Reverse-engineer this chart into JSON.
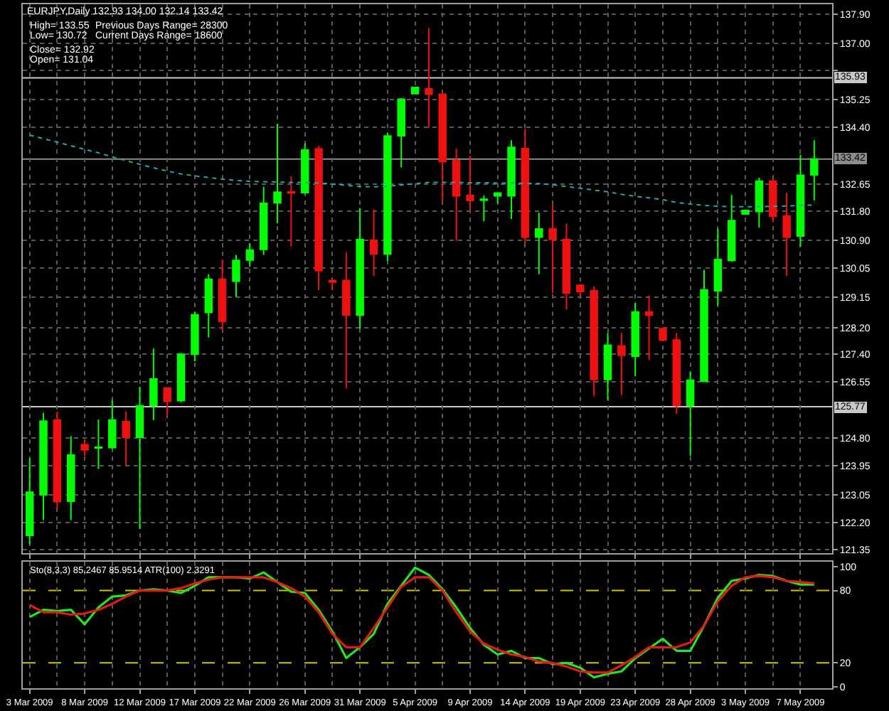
{
  "chart_data": [
    {
      "type": "candlestick",
      "title": "EURJPY,Daily 132.93 134.00 132.14 133.42",
      "annotations": [
        "High= 133.55",
        "Previous Days Range= 28300",
        "Low= 130.72",
        "Current Days Range= 18600",
        "Close= 132.92",
        "Open= 131.04"
      ],
      "categories": [
        null,
        null,
        null,
        null,
        null,
        null,
        null,
        null,
        null,
        null,
        null,
        null,
        null,
        null,
        null,
        null,
        null,
        null,
        null,
        null,
        null,
        null,
        null,
        null,
        null,
        null,
        null,
        null,
        null,
        null,
        null,
        null,
        null,
        null,
        null,
        null,
        null,
        null,
        null,
        null,
        null,
        null,
        null,
        null,
        null,
        null,
        null,
        null,
        null,
        null,
        null,
        null,
        null,
        null,
        null,
        null,
        null,
        null
      ],
      "ohlc": [
        [
          121.8,
          124.18,
          121.52,
          123.13
        ],
        [
          123.05,
          125.58,
          122.27,
          125.33
        ],
        [
          125.36,
          125.62,
          122.62,
          122.84
        ],
        [
          122.85,
          124.86,
          122.27,
          124.28
        ],
        [
          124.6,
          124.73,
          124.25,
          124.44
        ],
        [
          124.5,
          125.38,
          123.85,
          124.52
        ],
        [
          124.51,
          125.98,
          124.47,
          125.36
        ],
        [
          125.31,
          125.62,
          123.96,
          124.83
        ],
        [
          124.83,
          126.39,
          122.0,
          125.8
        ],
        [
          125.81,
          127.57,
          125.36,
          126.63
        ],
        [
          126.35,
          126.37,
          125.48,
          125.94
        ],
        [
          125.96,
          127.43,
          125.91,
          127.39
        ],
        [
          127.39,
          128.7,
          127.17,
          128.61
        ],
        [
          128.68,
          129.86,
          127.91,
          129.71
        ],
        [
          129.71,
          130.32,
          128.12,
          128.41
        ],
        [
          129.65,
          130.46,
          129.16,
          130.29
        ],
        [
          130.3,
          130.82,
          130.1,
          130.61
        ],
        [
          130.63,
          132.56,
          130.46,
          132.05
        ],
        [
          132.07,
          134.51,
          131.43,
          132.4
        ],
        [
          132.41,
          132.89,
          130.72,
          132.37
        ],
        [
          132.38,
          133.9,
          132.34,
          133.7
        ],
        [
          133.73,
          133.83,
          129.38,
          129.97
        ],
        [
          129.67,
          129.7,
          129.38,
          129.62
        ],
        [
          129.67,
          130.53,
          126.33,
          128.6
        ],
        [
          128.6,
          131.91,
          128.18,
          130.94
        ],
        [
          130.91,
          131.86,
          129.81,
          130.49
        ],
        [
          130.49,
          134.22,
          130.27,
          134.13
        ],
        [
          134.14,
          135.3,
          133.16,
          135.27
        ],
        [
          135.44,
          135.66,
          135.42,
          135.63
        ],
        [
          135.59,
          137.47,
          134.39,
          135.42
        ],
        [
          135.42,
          135.44,
          132.12,
          133.34
        ],
        [
          133.37,
          133.74,
          130.89,
          132.28
        ],
        [
          132.3,
          133.52,
          131.83,
          132.14
        ],
        [
          132.15,
          132.3,
          131.5,
          132.18
        ],
        [
          132.28,
          132.38,
          132.05,
          132.37
        ],
        [
          132.28,
          134.0,
          131.57,
          133.78
        ],
        [
          133.74,
          134.36,
          130.82,
          131.01
        ],
        [
          131.01,
          131.76,
          129.86,
          131.26
        ],
        [
          131.26,
          132.01,
          129.28,
          130.94
        ],
        [
          130.94,
          131.43,
          128.77,
          129.28
        ],
        [
          129.52,
          129.55,
          129.16,
          129.33
        ],
        [
          129.35,
          129.49,
          126.1,
          126.61
        ],
        [
          126.61,
          128.05,
          125.98,
          127.67
        ],
        [
          127.65,
          128.05,
          126.13,
          127.36
        ],
        [
          127.33,
          128.99,
          126.71,
          128.7
        ],
        [
          128.7,
          129.21,
          127.21,
          128.6
        ],
        [
          128.18,
          128.19,
          127.82,
          127.83
        ],
        [
          127.83,
          128.05,
          125.55,
          125.81
        ],
        [
          125.81,
          126.85,
          124.25,
          126.59
        ],
        [
          126.56,
          130.0,
          126.53,
          129.38
        ],
        [
          129.35,
          131.26,
          128.9,
          130.32
        ],
        [
          130.29,
          132.31,
          130.25,
          131.52
        ],
        [
          131.72,
          131.83,
          131.72,
          131.83
        ],
        [
          131.8,
          132.84,
          131.3,
          132.74
        ],
        [
          132.73,
          132.82,
          131.47,
          131.65
        ],
        [
          131.66,
          132.38,
          129.81,
          131.01
        ],
        [
          131.04,
          133.55,
          130.72,
          132.92
        ],
        [
          132.93,
          134.0,
          132.14,
          133.42
        ]
      ],
      "colors": [
        "#00ff00",
        "#00ff00",
        "#ee1111",
        "#00ff00",
        "#ee1111",
        "#00ff00",
        "#00ff00",
        "#ee1111",
        "#00ff00",
        "#00ff00",
        "#ee1111",
        "#00ff00",
        "#00ff00",
        "#00ff00",
        "#ee1111",
        "#00ff00",
        "#00ff00",
        "#00ff00",
        "#00ff00",
        "#ee1111",
        "#00ff00",
        "#ee1111",
        "#ee1111",
        "#ee1111",
        "#00ff00",
        "#ee1111",
        "#00ff00",
        "#00ff00",
        "#00ff00",
        "#ee1111",
        "#ee1111",
        "#ee1111",
        "#ee1111",
        "#00ff00",
        "#00ff00",
        "#00ff00",
        "#ee1111",
        "#00ff00",
        "#ee1111",
        "#ee1111",
        "#ee1111",
        "#ee1111",
        "#00ff00",
        "#ee1111",
        "#00ff00",
        "#ee1111",
        "#ee1111",
        "#ee1111",
        "#00ff00",
        "#00ff00",
        "#00ff00",
        "#00ff00",
        "#00ff00",
        "#00ff00",
        "#ee1111",
        "#ee1111",
        "#00ff00",
        "#00ff00"
      ],
      "series": [
        {
          "type": "line",
          "color": "#20a8a8",
          "line_style": "dotted",
          "values": [
            134.16,
            134.05,
            133.94,
            133.83,
            133.72,
            133.61,
            133.49,
            133.37,
            133.26,
            133.15,
            133.05,
            132.96,
            132.9,
            132.85,
            132.8,
            132.76,
            132.73,
            132.72,
            132.71,
            132.7,
            132.7,
            132.68,
            132.65,
            132.61,
            132.57,
            132.56,
            132.58,
            132.62,
            132.66,
            132.7,
            132.7,
            132.7,
            132.69,
            132.69,
            132.68,
            132.68,
            132.67,
            132.66,
            132.63,
            132.57,
            132.52,
            132.46,
            132.41,
            132.33,
            132.27,
            132.22,
            132.17,
            132.08,
            132.03,
            131.99,
            131.96,
            131.95,
            131.95,
            131.95,
            131.96,
            131.97,
            131.99,
            132.0
          ]
        }
      ],
      "ylim": [
        121.25,
        138.2
      ],
      "yticks": [
        {
          "value": 137.9,
          "label": "137.90"
        },
        {
          "value": 137.0,
          "label": "137.00"
        },
        {
          "value": 136.15,
          "label": null
        },
        {
          "value": 135.25,
          "label": "135.25"
        },
        {
          "value": 134.4,
          "label": "134.40"
        },
        {
          "value": 132.65,
          "label": "132.65"
        },
        {
          "value": 131.8,
          "label": "131.80"
        },
        {
          "value": 130.9,
          "label": "130.90"
        },
        {
          "value": 130.05,
          "label": "130.05"
        },
        {
          "value": 129.15,
          "label": "129.15"
        },
        {
          "value": 128.2,
          "label": "128.20"
        },
        {
          "value": 127.4,
          "label": "127.40"
        },
        {
          "value": 126.55,
          "label": "126.55"
        },
        {
          "value": 124.8,
          "label": "124.80"
        },
        {
          "value": 123.95,
          "label": "123.95"
        },
        {
          "value": 123.05,
          "label": "123.05"
        },
        {
          "value": 122.2,
          "label": "122.20"
        },
        {
          "value": 121.35,
          "label": "121.35"
        }
      ],
      "ref_lines": [
        {
          "axis": "y",
          "value": 135.93,
          "label": "135.93",
          "color": "#c8c8c8"
        },
        {
          "axis": "y",
          "value": 133.42,
          "label": "133.42",
          "color": "#8c8c8c"
        },
        {
          "axis": "y",
          "value": 125.77,
          "label": "125.77",
          "color": "#c8c8c8"
        }
      ],
      "grid": true,
      "tick_labels": "y"
    },
    {
      "type": "line",
      "title": "Sto(8,3,3) 85.2467 85.9514 ATR(100) 2.3291",
      "categories": [
        "3 Mar 2009",
        null,
        null,
        null,
        "8 Mar 2009",
        null,
        null,
        null,
        "12 Mar 2009",
        null,
        null,
        null,
        "17 Mar 2009",
        null,
        null,
        null,
        "22 Mar 2009",
        null,
        null,
        null,
        "26 Mar 2009",
        null,
        null,
        null,
        "31 Mar 2009",
        null,
        null,
        null,
        "5 Apr 2009",
        null,
        null,
        null,
        "9 Apr 2009",
        null,
        null,
        null,
        "14 Apr 2009",
        null,
        null,
        null,
        "19 Apr 2009",
        null,
        null,
        null,
        "23 Apr 2009",
        null,
        null,
        null,
        "28 Apr 2009",
        null,
        null,
        null,
        "3 May 2009",
        null,
        null,
        null,
        "7 May 2009",
        null
      ],
      "series": [
        {
          "color": "#22e622",
          "values": [
            58,
            64,
            63,
            64,
            52,
            66,
            75,
            76,
            80,
            81,
            80,
            78,
            84,
            91,
            91,
            91,
            90,
            95,
            87,
            79,
            78,
            64,
            46,
            24,
            33,
            44,
            69,
            84,
            99,
            93,
            81,
            66,
            49,
            35,
            27,
            30,
            24,
            24,
            19,
            20,
            16,
            8,
            11,
            13,
            24,
            32,
            40,
            30,
            30,
            51,
            74,
            88,
            90,
            93,
            92,
            88,
            85,
            85
          ]
        },
        {
          "color": "#e61919",
          "values": [
            68,
            62,
            62,
            60,
            61,
            64,
            69,
            75,
            80,
            80,
            80,
            82,
            86,
            89,
            91,
            91,
            91,
            91,
            87,
            82,
            75,
            62,
            44,
            33,
            33,
            49,
            66,
            83,
            91,
            91,
            80,
            62,
            46,
            36,
            31,
            27,
            25,
            21,
            20,
            17,
            13,
            12,
            12,
            18,
            25,
            33,
            33,
            33,
            37,
            51,
            71,
            84,
            91,
            92,
            91,
            88,
            87,
            86
          ]
        }
      ],
      "ylim": [
        -1,
        104
      ],
      "yticks": [
        0,
        20,
        80,
        100
      ],
      "ref_lines": [
        {
          "axis": "y",
          "value": 80,
          "color": "#c8c800",
          "line_style": "dashed"
        },
        {
          "axis": "y",
          "value": 20,
          "color": "#c8c800",
          "line_style": "dashed"
        }
      ],
      "grid": "x"
    }
  ]
}
